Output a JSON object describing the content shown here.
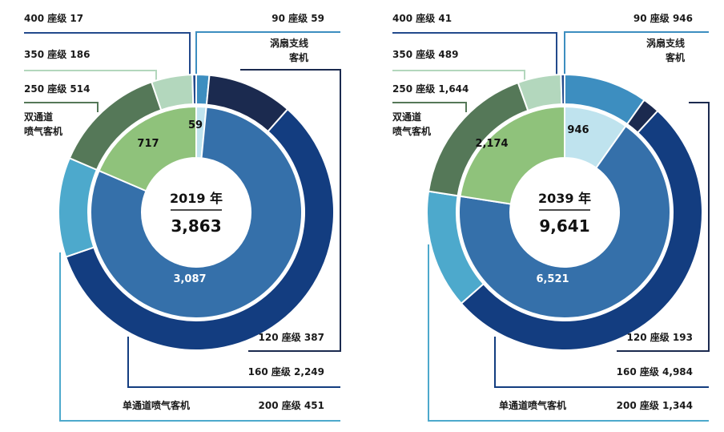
{
  "chart_data": [
    {
      "type": "donut",
      "center_title": "2019 年",
      "center_total": "3,863",
      "inner_ring": [
        {
          "name": "涡扇支线客机",
          "value": 59,
          "label": "59",
          "color": "#bfe3ee"
        },
        {
          "name": "单通道喷气客机",
          "value": 3087,
          "label": "3,087",
          "color": "#3570aa"
        },
        {
          "name": "双通道喷气客机",
          "value": 717,
          "label": "717",
          "color": "#8fc27b"
        }
      ],
      "outer_ring": [
        {
          "name": "90 座级",
          "value": 59,
          "label": "90 座级  59",
          "color": "#3d8ec0"
        },
        {
          "name": "120 座级",
          "value": 387,
          "label": "120 座级  387",
          "color": "#1b2a4f"
        },
        {
          "name": "160 座级",
          "value": 2249,
          "label": "160 座级  2,249",
          "color": "#133d80"
        },
        {
          "name": "200 座级",
          "value": 451,
          "label": "200 座级  451",
          "color": "#4da9cc"
        },
        {
          "name": "250 座级",
          "value": 514,
          "label": "250 座级  514",
          "color": "#557858"
        },
        {
          "name": "350 座级",
          "value": 186,
          "label": "350 座级  186",
          "color": "#b3d7bd"
        },
        {
          "name": "400 座级",
          "value": 17,
          "label": "400 座级  17",
          "color": "#234a8c"
        }
      ],
      "category_labels": [
        "涡扇支线",
        "客机",
        "单通道喷气客机",
        "双通道",
        "喷气客机"
      ]
    },
    {
      "type": "donut",
      "center_title": "2039 年",
      "center_total": "9,641",
      "inner_ring": [
        {
          "name": "涡扇支线客机",
          "value": 946,
          "label": "946",
          "color": "#bfe3ee"
        },
        {
          "name": "单通道喷气客机",
          "value": 6521,
          "label": "6,521",
          "color": "#3570aa"
        },
        {
          "name": "双通道喷气客机",
          "value": 2174,
          "label": "2,174",
          "color": "#8fc27b"
        }
      ],
      "outer_ring": [
        {
          "name": "90 座级",
          "value": 946,
          "label": "90 座级  946",
          "color": "#3d8ec0"
        },
        {
          "name": "120 座级",
          "value": 193,
          "label": "120 座级  193",
          "color": "#1b2a4f"
        },
        {
          "name": "160 座级",
          "value": 4984,
          "label": "160 座级  4,984",
          "color": "#133d80"
        },
        {
          "name": "200 座级",
          "value": 1344,
          "label": "200 座级  1,344",
          "color": "#4da9cc"
        },
        {
          "name": "250 座级",
          "value": 1644,
          "label": "250 座级  1,644",
          "color": "#557858"
        },
        {
          "name": "350 座级",
          "value": 489,
          "label": "350 座级  489",
          "color": "#b3d7bd"
        },
        {
          "name": "400 座级",
          "value": 41,
          "label": "400 座级  41",
          "color": "#234a8c"
        }
      ],
      "category_labels": [
        "涡扇支线",
        "客机",
        "单通道喷气客机",
        "双通道",
        "喷气客机"
      ]
    }
  ]
}
